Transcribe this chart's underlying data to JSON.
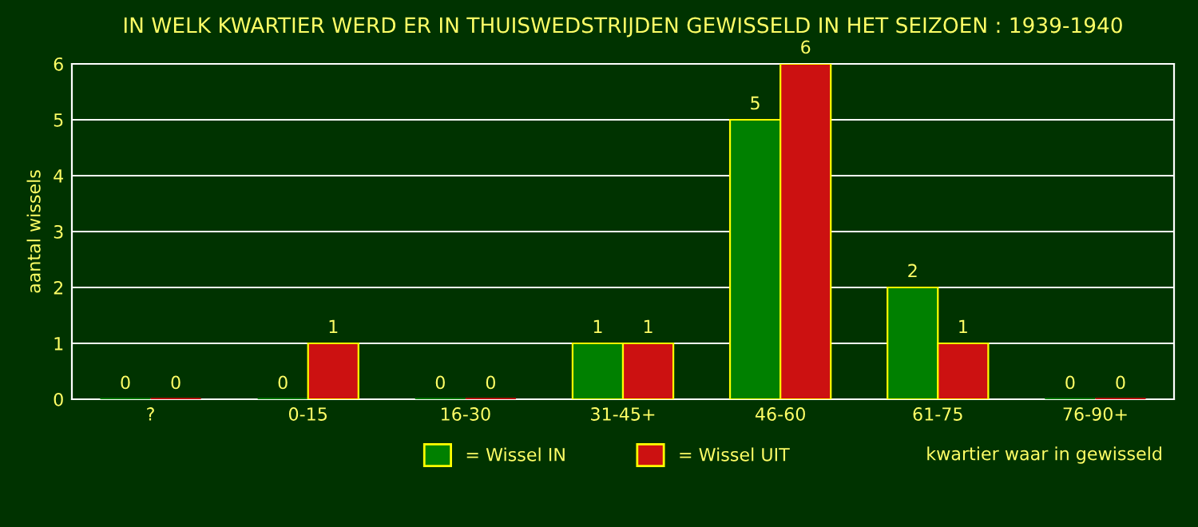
{
  "chart_data": {
    "type": "bar",
    "title": "IN WELK KWARTIER WERD ER IN THUISWEDSTRIJDEN GEWISSELD IN HET SEIZOEN : 1939-1940",
    "xlabel": "kwartier waar in gewisseld",
    "ylabel": "aantal wissels",
    "categories": [
      "?",
      "0-15",
      "16-30",
      "31-45+",
      "46-60",
      "61-75",
      "76-90+"
    ],
    "series": [
      {
        "name": "= Wissel IN",
        "color": "#008000",
        "values": [
          0,
          0,
          0,
          1,
          5,
          2,
          0
        ]
      },
      {
        "name": "= Wissel UIT",
        "color": "#cc1111",
        "values": [
          0,
          1,
          0,
          1,
          6,
          1,
          0
        ]
      }
    ],
    "ylim": [
      0,
      6
    ],
    "yticks": [
      0,
      1,
      2,
      3,
      4,
      5,
      6
    ],
    "grid": "y",
    "legend": "bottom",
    "data_labels": true
  }
}
